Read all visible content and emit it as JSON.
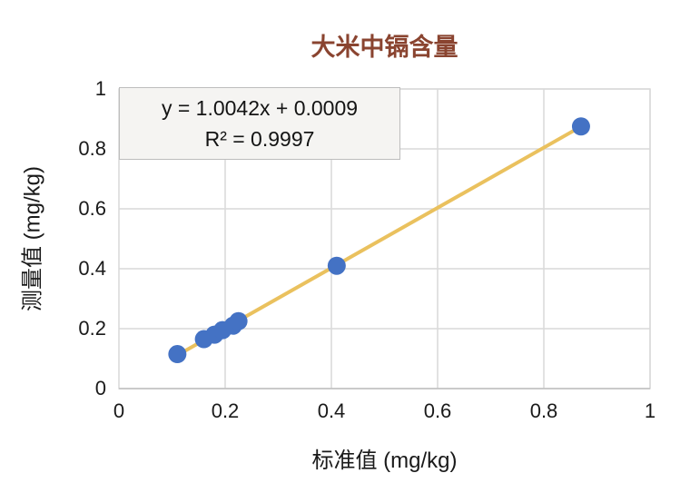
{
  "chart_data": {
    "type": "scatter",
    "title": "大米中镉含量",
    "xlabel": "标准值 (mg/kg)",
    "ylabel": "测量值 (mg/kg)",
    "xlim": [
      0,
      1
    ],
    "ylim": [
      0,
      1
    ],
    "grid": true,
    "legend": false,
    "x_ticks": [
      0,
      0.2,
      0.4,
      0.6,
      0.8,
      1
    ],
    "y_ticks": [
      0,
      0.2,
      0.4,
      0.6,
      0.8,
      1
    ],
    "x_tick_labels": [
      "0",
      "0.2",
      "0.4",
      "0.6",
      "0.8",
      "1"
    ],
    "y_tick_labels": [
      "0",
      "0.2",
      "0.4",
      "0.6",
      "0.8",
      "1"
    ],
    "points": [
      [
        0.11,
        0.115
      ],
      [
        0.16,
        0.165
      ],
      [
        0.18,
        0.18
      ],
      [
        0.195,
        0.195
      ],
      [
        0.215,
        0.21
      ],
      [
        0.225,
        0.225
      ],
      [
        0.41,
        0.41
      ],
      [
        0.87,
        0.875
      ]
    ],
    "trendline": {
      "equation_label": "y = 1.0042x + 0.0009",
      "r_squared_label": "R² = 0.9997",
      "slope": 1.0042,
      "intercept": 0.0009,
      "x_start": 0.11,
      "x_end": 0.87
    },
    "colors": {
      "point": "#4472C4",
      "trendline": "#EAC15E",
      "gridline": "#D9D9D9",
      "axis_line": "#BFBFBF",
      "title": "#8A4430",
      "text": "#1A1A1A"
    }
  }
}
